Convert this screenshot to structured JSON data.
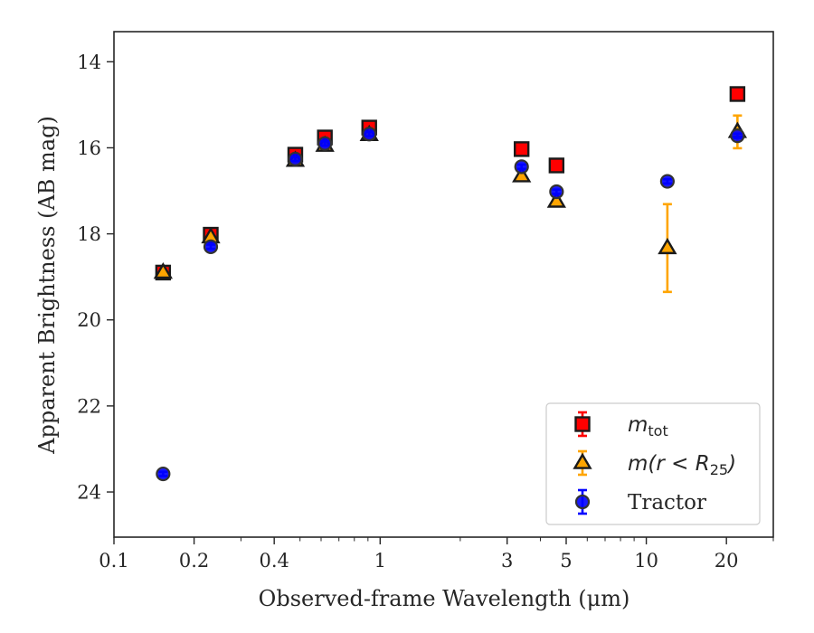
{
  "chart_data": {
    "type": "scatter",
    "xlabel": "Observed-frame Wavelength (μm)",
    "ylabel": "Apparent Brightness (AB mag)",
    "xscale": "log",
    "xlim": [
      0.1,
      30
    ],
    "ylim": [
      25.05,
      13.3
    ],
    "y_inverted": true,
    "grid": false,
    "legend_position": "lower-right",
    "x_ticks": [
      {
        "value": 0.1,
        "label": "0.1"
      },
      {
        "value": 0.2,
        "label": "0.2"
      },
      {
        "value": 0.4,
        "label": "0.4"
      },
      {
        "value": 1,
        "label": "1"
      },
      {
        "value": 3,
        "label": "3"
      },
      {
        "value": 5,
        "label": "5"
      },
      {
        "value": 10,
        "label": "10"
      },
      {
        "value": 20,
        "label": "20"
      }
    ],
    "y_ticks": [
      {
        "value": 14,
        "label": "14"
      },
      {
        "value": 16,
        "label": "16"
      },
      {
        "value": 18,
        "label": "18"
      },
      {
        "value": 20,
        "label": "20"
      },
      {
        "value": 22,
        "label": "22"
      },
      {
        "value": 24,
        "label": "24"
      }
    ],
    "series": [
      {
        "name": "m_tot",
        "legend_main": "m",
        "legend_sub": "tot",
        "legend_tail": "",
        "marker": "square",
        "color": "#ff0000",
        "error_color": "#ff0000",
        "points": [
          {
            "x": 0.153,
            "y": 18.9,
            "err": 0.05
          },
          {
            "x": 0.231,
            "y": 18.02,
            "err": 0.05
          },
          {
            "x": 0.48,
            "y": 16.16,
            "err": 0.05
          },
          {
            "x": 0.62,
            "y": 15.76,
            "err": 0.05
          },
          {
            "x": 0.91,
            "y": 15.53,
            "err": 0.05
          },
          {
            "x": 3.4,
            "y": 16.03,
            "err": 0.05
          },
          {
            "x": 4.6,
            "y": 16.41,
            "err": 0.05
          },
          {
            "x": 22,
            "y": 14.75,
            "err": 0.05
          }
        ]
      },
      {
        "name": "m(r < R25)",
        "legend_main": "m(r < R",
        "legend_sub": "25",
        "legend_tail": ")",
        "marker": "triangle",
        "color": "#ffa500",
        "error_color": "#ffa500",
        "points": [
          {
            "x": 0.153,
            "y": 18.9,
            "err": 0.05
          },
          {
            "x": 0.231,
            "y": 18.08,
            "err": 0.05
          },
          {
            "x": 0.48,
            "y": 16.3,
            "err": 0.05
          },
          {
            "x": 0.62,
            "y": 15.95,
            "err": 0.05
          },
          {
            "x": 0.91,
            "y": 15.7,
            "err": 0.05
          },
          {
            "x": 3.4,
            "y": 16.66,
            "err": 0.05
          },
          {
            "x": 4.6,
            "y": 17.25,
            "err": 0.05
          },
          {
            "x": 12,
            "y": 18.33,
            "err": 1.02
          },
          {
            "x": 22,
            "y": 15.63,
            "err": 0.38
          }
        ]
      },
      {
        "name": "Tractor",
        "legend_main": "Tractor",
        "legend_sub": "",
        "legend_tail": "",
        "marker": "circle",
        "color": "#0000ff",
        "error_color": "#0000ff",
        "points": [
          {
            "x": 0.153,
            "y": 23.58,
            "err": 0.05
          },
          {
            "x": 0.231,
            "y": 18.3,
            "err": 0.05
          },
          {
            "x": 0.48,
            "y": 16.26,
            "err": 0.05
          },
          {
            "x": 0.62,
            "y": 15.9,
            "err": 0.05
          },
          {
            "x": 0.91,
            "y": 15.68,
            "err": 0.05
          },
          {
            "x": 3.4,
            "y": 16.44,
            "err": 0.05
          },
          {
            "x": 4.6,
            "y": 17.02,
            "err": 0.05
          },
          {
            "x": 12,
            "y": 16.78,
            "err": 0.05
          },
          {
            "x": 22,
            "y": 15.72,
            "err": 0.05
          }
        ]
      }
    ]
  }
}
